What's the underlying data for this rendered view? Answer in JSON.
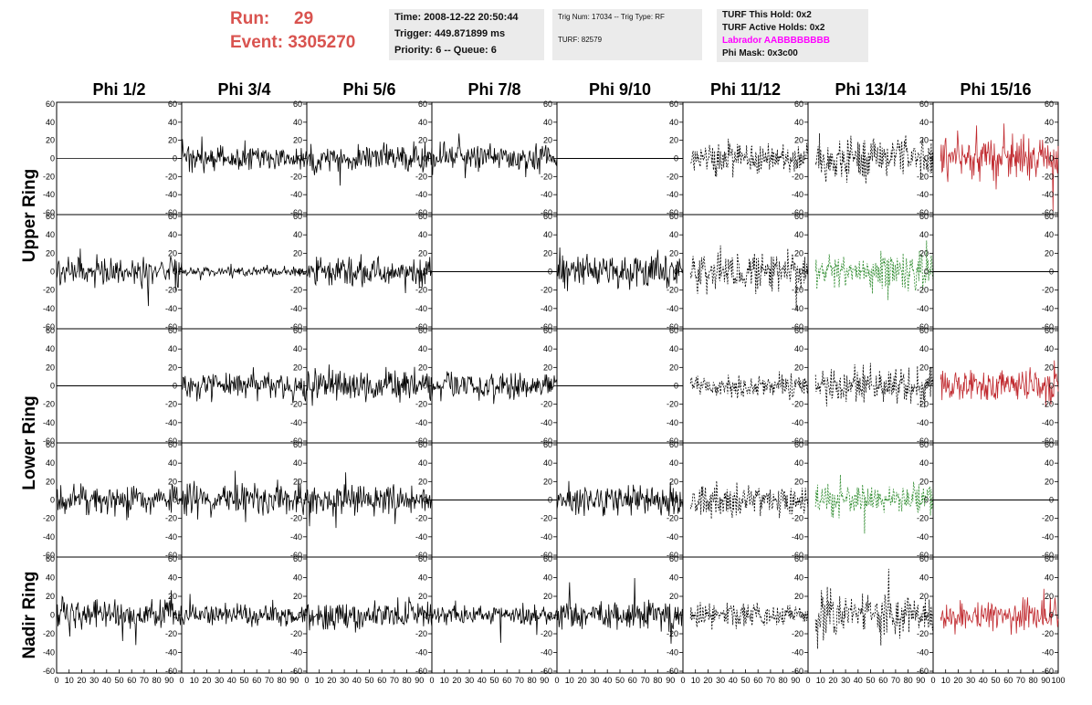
{
  "run_info": {
    "run_label": "Run:",
    "run_value": "29",
    "event_label": "Event:",
    "event_value": "3305270"
  },
  "info_box": {
    "time": "Time: 2008-12-22 20:50:44",
    "trigger": "Trigger: 449.871899 ms",
    "priority": "Priority: 6 -- Queue: 6"
  },
  "trig_box": {
    "trig": "Trig Num: 17034 -- Trig Type: RF",
    "turf": "TURF: 82579"
  },
  "turf_box": {
    "this_hold": "TURF This Hold: 0x2",
    "active_holds": "TURF Active Holds: 0x2",
    "labrador": "Labrador AABBBBBBBB",
    "phi_mask": "Phi Mask: 0x3c00",
    "labrador_color": "#ff00ff"
  },
  "chart_data": {
    "type": "line",
    "columns": [
      "Phi 1/2",
      "Phi 3/4",
      "Phi 5/6",
      "Phi 7/8",
      "Phi 9/10",
      "Phi 11/12",
      "Phi 13/14",
      "Phi 15/16"
    ],
    "rows": [
      "Upper Ring",
      "Lower Ring",
      "Nadir Ring"
    ],
    "ylim": [
      -60,
      60
    ],
    "xlim": [
      0,
      100
    ],
    "y_ticks": [
      "60",
      "40",
      "20",
      "0",
      "-20",
      "-40",
      "-60"
    ],
    "x_ticks": [
      "0",
      "10",
      "20",
      "30",
      "40",
      "50",
      "60",
      "70",
      "80",
      "90",
      "100"
    ],
    "colors": {
      "normal": "#000000",
      "red": "#c0282d",
      "green": "#2e8b2e"
    },
    "panels": [
      [
        "noise",
        0,
        "black",
        "solid"
      ],
      [
        "noise",
        8,
        "black",
        "solid"
      ],
      [
        "noise",
        10,
        "black",
        "solid"
      ],
      [
        "noise",
        9,
        "black",
        "solid"
      ],
      [
        "flat",
        0,
        "black",
        "solid"
      ],
      [
        "noise",
        10,
        "black",
        "dashed"
      ],
      [
        "noise",
        14,
        "black",
        "dashed"
      ],
      [
        "noise",
        14,
        "red",
        "solid"
      ],
      [
        "noise",
        10,
        "black",
        "solid"
      ],
      [
        "noise",
        3,
        "black",
        "solid"
      ],
      [
        "noise",
        10,
        "black",
        "solid"
      ],
      [
        "flat",
        0,
        "black",
        "solid"
      ],
      [
        "noise",
        10,
        "black",
        "solid"
      ],
      [
        "noise",
        13,
        "black",
        "dashed"
      ],
      [
        "noise",
        12,
        "green",
        "dashed"
      ],
      [
        "flat",
        0,
        "black",
        "solid"
      ],
      [
        "flat",
        0,
        "black",
        "solid"
      ],
      [
        "noise",
        9,
        "black",
        "solid"
      ],
      [
        "noise",
        11,
        "black",
        "solid"
      ],
      [
        "noise",
        9,
        "black",
        "solid"
      ],
      [
        "flat",
        0,
        "black",
        "solid"
      ],
      [
        "noise",
        8,
        "black",
        "dashed"
      ],
      [
        "noise",
        12,
        "black",
        "dashed"
      ],
      [
        "noise",
        12,
        "red",
        "solid"
      ],
      [
        "noise",
        10,
        "black",
        "solid"
      ],
      [
        "noise",
        11,
        "black",
        "solid"
      ],
      [
        "noise",
        10,
        "black",
        "solid"
      ],
      [
        "flat",
        0,
        "black",
        "solid"
      ],
      [
        "noise",
        10,
        "black",
        "solid"
      ],
      [
        "noise",
        11,
        "black",
        "dashed"
      ],
      [
        "noise",
        10,
        "green",
        "dashed"
      ],
      [
        "flat",
        0,
        "black",
        "solid"
      ],
      [
        "noise",
        10,
        "black",
        "solid"
      ],
      [
        "noise",
        7,
        "black",
        "solid"
      ],
      [
        "noise",
        9,
        "black",
        "solid"
      ],
      [
        "noise",
        7,
        "black",
        "solid"
      ],
      [
        "noise",
        10,
        "black",
        "solid"
      ],
      [
        "noise",
        8,
        "black",
        "dashed"
      ],
      [
        "noise",
        14,
        "black",
        "dashed"
      ],
      [
        "noise",
        10,
        "red",
        "solid"
      ]
    ]
  }
}
